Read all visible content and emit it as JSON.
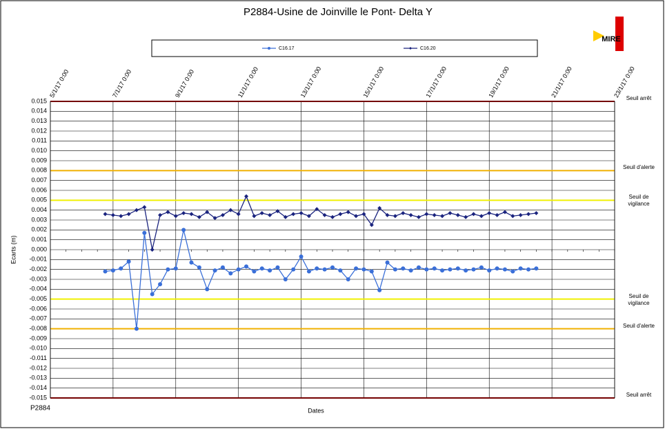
{
  "chart_data": {
    "type": "line",
    "title": "P2884-Usine de Joinville le Pont- Delta Y",
    "x_label": "Dates",
    "y_label": "Ecarts (m)",
    "footer": "P2884",
    "logo": "MIRE",
    "x": [
      "2017-01-06T18:00",
      "2017-01-07T00:00",
      "2017-01-07T06:00",
      "2017-01-07T12:00",
      "2017-01-07T18:00",
      "2017-01-08T00:00",
      "2017-01-08T06:00",
      "2017-01-08T12:00",
      "2017-01-08T18:00",
      "2017-01-09T00:00",
      "2017-01-09T06:00",
      "2017-01-09T12:00",
      "2017-01-09T18:00",
      "2017-01-10T00:00",
      "2017-01-10T06:00",
      "2017-01-10T12:00",
      "2017-01-10T18:00",
      "2017-01-11T00:00",
      "2017-01-11T06:00",
      "2017-01-11T12:00",
      "2017-01-11T18:00",
      "2017-01-12T00:00",
      "2017-01-12T06:00",
      "2017-01-12T12:00",
      "2017-01-12T18:00",
      "2017-01-13T00:00",
      "2017-01-13T06:00",
      "2017-01-13T12:00",
      "2017-01-13T18:00",
      "2017-01-14T00:00",
      "2017-01-14T06:00",
      "2017-01-14T12:00",
      "2017-01-14T18:00",
      "2017-01-15T00:00",
      "2017-01-15T06:00",
      "2017-01-15T12:00",
      "2017-01-15T18:00",
      "2017-01-16T00:00",
      "2017-01-16T06:00",
      "2017-01-16T12:00",
      "2017-01-16T18:00",
      "2017-01-17T00:00",
      "2017-01-17T06:00",
      "2017-01-17T12:00",
      "2017-01-17T18:00",
      "2017-01-18T00:00",
      "2017-01-18T06:00",
      "2017-01-18T12:00",
      "2017-01-18T18:00",
      "2017-01-19T00:00",
      "2017-01-19T06:00",
      "2017-01-19T12:00",
      "2017-01-19T18:00",
      "2017-01-20T00:00",
      "2017-01-20T06:00",
      "2017-01-20T12:00"
    ],
    "series": [
      {
        "name": "C16.17",
        "color": "#3a6fd8",
        "values": [
          -0.0022,
          -0.0021,
          -0.0019,
          -0.0012,
          -0.008,
          0.0017,
          -0.0045,
          -0.0035,
          -0.002,
          -0.0019,
          0.002,
          -0.0013,
          -0.0018,
          -0.004,
          -0.0021,
          -0.0018,
          -0.0024,
          -0.002,
          -0.0017,
          -0.0022,
          -0.0019,
          -0.0021,
          -0.0018,
          -0.003,
          -0.002,
          -0.0007,
          -0.0022,
          -0.0019,
          -0.002,
          -0.0018,
          -0.0021,
          -0.003,
          -0.0019,
          -0.002,
          -0.0022,
          -0.0041,
          -0.0013,
          -0.002,
          -0.0019,
          -0.0021,
          -0.0018,
          -0.002,
          -0.0019,
          -0.0021,
          -0.002,
          -0.0019,
          -0.0021,
          -0.002,
          -0.0018,
          -0.0021,
          -0.0019,
          -0.002,
          -0.0022,
          -0.0019,
          -0.002,
          -0.0019
        ]
      },
      {
        "name": "C16.20",
        "color": "#1a237e",
        "values": [
          0.0036,
          0.0035,
          0.0034,
          0.0036,
          0.004,
          0.0043,
          0.0,
          0.0035,
          0.0038,
          0.0034,
          0.0037,
          0.0036,
          0.0033,
          0.0038,
          0.0032,
          0.0035,
          0.004,
          0.0036,
          0.0054,
          0.0034,
          0.0037,
          0.0035,
          0.0039,
          0.0033,
          0.0036,
          0.0037,
          0.0034,
          0.0041,
          0.0035,
          0.0033,
          0.0036,
          0.0038,
          0.0034,
          0.0036,
          0.0025,
          0.0042,
          0.0035,
          0.0034,
          0.0037,
          0.0035,
          0.0033,
          0.0036,
          0.0035,
          0.0034,
          0.0037,
          0.0035,
          0.0033,
          0.0036,
          0.0034,
          0.0037,
          0.0035,
          0.0038,
          0.0034,
          0.0035,
          0.0036,
          0.0037
        ]
      }
    ],
    "xlim": [
      "2017-01-05T00:00",
      "2017-01-23T00:00"
    ],
    "xticks": [
      {
        "value": "2017-01-05T00:00",
        "label": "5/1/17 0:00"
      },
      {
        "value": "2017-01-07T00:00",
        "label": "7/1/17 0:00"
      },
      {
        "value": "2017-01-09T00:00",
        "label": "9/1/17 0:00"
      },
      {
        "value": "2017-01-11T00:00",
        "label": "11/1/17 0:00"
      },
      {
        "value": "2017-01-13T00:00",
        "label": "13/1/17 0:00"
      },
      {
        "value": "2017-01-15T00:00",
        "label": "15/1/17 0:00"
      },
      {
        "value": "2017-01-17T00:00",
        "label": "17/1/17 0:00"
      },
      {
        "value": "2017-01-19T00:00",
        "label": "19/1/17 0:00"
      },
      {
        "value": "2017-01-21T00:00",
        "label": "21/1/17 0:00"
      },
      {
        "value": "2017-01-23T00:00",
        "label": "23/1/17 0:00"
      }
    ],
    "ylim": [
      -0.015,
      0.015
    ],
    "yticks": [
      0.015,
      0.014,
      0.013,
      0.012,
      0.011,
      {
        "value": 0.01,
        "label": "0.010"
      },
      0.009,
      0.008,
      0.007,
      0.006,
      0.005,
      0.004,
      0.003,
      0.002,
      0.001,
      {
        "value": 0,
        "label": "0.000"
      },
      -0.001,
      -0.002,
      -0.003,
      -0.004,
      -0.005,
      -0.006,
      -0.007,
      -0.008,
      -0.009,
      {
        "value": -0.01,
        "label": "-0.010"
      },
      -0.011,
      -0.012,
      -0.013,
      -0.014,
      -0.015
    ],
    "thresholds": [
      {
        "value": 0.015,
        "label": "Seuil arrêt",
        "color": "#c00000"
      },
      {
        "value": 0.008,
        "label": "Seuil d'alerte",
        "color": "#f0b000"
      },
      {
        "value": 0.005,
        "label": "Seuil de vigilance",
        "color": "#f0f000"
      },
      {
        "value": -0.005,
        "label": "Seuil de vigilance",
        "color": "#f0f000"
      },
      {
        "value": -0.008,
        "label": "Seuil d'alerte",
        "color": "#f0b000"
      },
      {
        "value": -0.015,
        "label": "Seuil arrêt",
        "color": "#c00000"
      }
    ],
    "grid": true
  }
}
